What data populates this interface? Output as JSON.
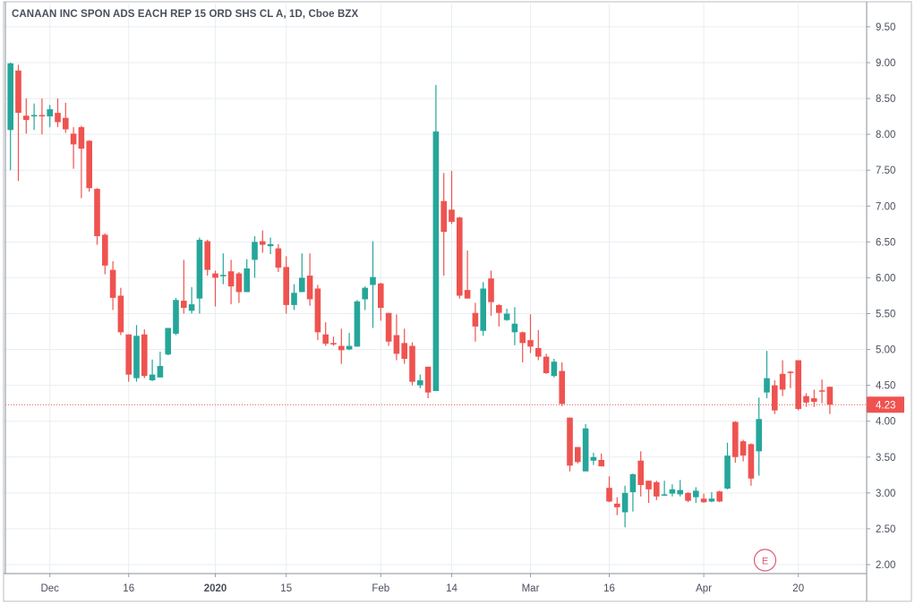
{
  "chart_data": {
    "type": "candlestick",
    "title": "CANAAN INC SPON ADS EACH REP 15 ORD SHS CL A, 1D, Cboe BZX",
    "ylim": [
      1.9,
      9.7
    ],
    "y_ticks": [
      "9.50",
      "9.00",
      "8.50",
      "8.00",
      "7.50",
      "7.00",
      "6.50",
      "6.00",
      "5.50",
      "5.00",
      "4.50",
      "4.00",
      "3.50",
      "3.00",
      "2.50",
      "2.00"
    ],
    "x_ticks": [
      {
        "label": "Dec",
        "candle": 6
      },
      {
        "label": "16",
        "candle": 16
      },
      {
        "label": "2020",
        "candle": 27
      },
      {
        "label": "15",
        "candle": 36
      },
      {
        "label": "Feb",
        "candle": 48
      },
      {
        "label": "14",
        "candle": 57
      },
      {
        "label": "Mar",
        "candle": 67
      },
      {
        "label": "16",
        "candle": 77
      },
      {
        "label": "Apr",
        "candle": 89
      },
      {
        "label": "20",
        "candle": 101
      }
    ],
    "last_price": 4.23,
    "last_price_label": "4.23",
    "earnings_marker": {
      "label": "E",
      "candle": 97
    },
    "colors": {
      "up": "#26a69a",
      "down": "#ef5350",
      "grid": "#e9eef2",
      "text": "#4a4f5c"
    },
    "ohlc_fields": [
      "open",
      "high",
      "low",
      "close"
    ],
    "candles": [
      [
        8.06,
        9.0,
        7.5,
        8.99
      ],
      [
        8.89,
        8.97,
        7.35,
        8.3
      ],
      [
        8.26,
        8.5,
        8.01,
        8.2
      ],
      [
        8.25,
        8.43,
        8.06,
        8.27
      ],
      [
        8.27,
        8.5,
        8.0,
        8.25
      ],
      [
        8.25,
        8.41,
        8.1,
        8.35
      ],
      [
        8.3,
        8.5,
        8.1,
        8.17
      ],
      [
        8.23,
        8.44,
        8.02,
        8.07
      ],
      [
        8.01,
        8.1,
        7.52,
        7.86
      ],
      [
        8.1,
        8.12,
        7.11,
        7.8
      ],
      [
        7.91,
        7.92,
        7.2,
        7.25
      ],
      [
        7.24,
        7.25,
        6.46,
        6.58
      ],
      [
        6.6,
        6.62,
        6.05,
        6.17
      ],
      [
        6.11,
        6.23,
        5.55,
        5.72
      ],
      [
        5.75,
        5.86,
        5.2,
        5.24
      ],
      [
        5.21,
        5.21,
        4.55,
        4.65
      ],
      [
        4.6,
        5.34,
        4.55,
        5.19
      ],
      [
        5.21,
        5.28,
        4.6,
        4.63
      ],
      [
        4.57,
        4.86,
        4.56,
        4.65
      ],
      [
        4.61,
        4.97,
        4.61,
        4.77
      ],
      [
        4.93,
        5.3,
        4.92,
        5.3
      ],
      [
        5.22,
        5.72,
        5.2,
        5.69
      ],
      [
        5.68,
        6.25,
        5.5,
        5.58
      ],
      [
        5.54,
        5.87,
        5.5,
        5.63
      ],
      [
        5.71,
        6.56,
        5.5,
        6.53
      ],
      [
        6.51,
        6.53,
        6.03,
        6.11
      ],
      [
        6.06,
        6.1,
        5.6,
        6.0
      ],
      [
        6.02,
        6.34,
        5.91,
        6.04
      ],
      [
        6.09,
        6.25,
        5.63,
        5.88
      ],
      [
        6.06,
        6.08,
        5.65,
        5.8
      ],
      [
        5.8,
        6.26,
        5.8,
        6.13
      ],
      [
        6.25,
        6.58,
        6.0,
        6.5
      ],
      [
        6.51,
        6.66,
        6.35,
        6.46
      ],
      [
        6.44,
        6.56,
        6.33,
        6.47
      ],
      [
        6.41,
        6.47,
        6.08,
        6.14
      ],
      [
        6.15,
        6.3,
        5.5,
        5.62
      ],
      [
        5.62,
        5.91,
        5.55,
        5.79
      ],
      [
        5.8,
        6.34,
        5.8,
        6.0
      ],
      [
        6.03,
        6.34,
        5.61,
        5.7
      ],
      [
        5.85,
        5.9,
        5.13,
        5.24
      ],
      [
        5.21,
        5.38,
        5.05,
        5.08
      ],
      [
        5.09,
        5.18,
        5.05,
        5.07
      ],
      [
        5.05,
        5.29,
        4.8,
        4.99
      ],
      [
        5.0,
        5.23,
        4.99,
        5.05
      ],
      [
        5.04,
        5.69,
        5.04,
        5.67
      ],
      [
        5.7,
        5.88,
        5.55,
        5.86
      ],
      [
        5.9,
        6.51,
        5.3,
        6.01
      ],
      [
        5.92,
        5.93,
        5.4,
        5.58
      ],
      [
        5.51,
        5.51,
        5.05,
        5.11
      ],
      [
        5.2,
        5.49,
        4.85,
        4.94
      ],
      [
        5.09,
        5.29,
        4.8,
        4.87
      ],
      [
        5.05,
        5.1,
        4.5,
        4.55
      ],
      [
        4.5,
        4.65,
        4.46,
        4.57
      ],
      [
        4.76,
        4.76,
        4.32,
        4.4
      ],
      [
        4.42,
        8.69,
        4.42,
        8.04
      ],
      [
        7.07,
        7.46,
        6.03,
        6.64
      ],
      [
        6.95,
        7.49,
        6.75,
        6.78
      ],
      [
        6.84,
        6.85,
        5.71,
        5.75
      ],
      [
        5.83,
        6.38,
        5.71,
        5.71
      ],
      [
        5.51,
        5.65,
        5.11,
        5.32
      ],
      [
        5.26,
        5.94,
        5.19,
        5.85
      ],
      [
        5.99,
        6.1,
        5.47,
        5.66
      ],
      [
        5.62,
        5.63,
        5.32,
        5.51
      ],
      [
        5.41,
        5.57,
        5.4,
        5.5
      ],
      [
        5.24,
        5.59,
        5.06,
        5.36
      ],
      [
        5.24,
        5.25,
        4.82,
        5.09
      ],
      [
        5.13,
        5.49,
        4.95,
        5.04
      ],
      [
        5.02,
        5.27,
        4.85,
        4.9
      ],
      [
        4.9,
        4.94,
        4.66,
        4.67
      ],
      [
        4.63,
        4.87,
        4.61,
        4.83
      ],
      [
        4.7,
        4.82,
        4.21,
        4.24
      ],
      [
        4.05,
        4.05,
        3.3,
        3.38
      ],
      [
        3.64,
        3.64,
        3.41,
        3.43
      ],
      [
        3.3,
        3.96,
        3.3,
        3.9
      ],
      [
        3.45,
        3.56,
        3.39,
        3.5
      ],
      [
        3.46,
        3.55,
        3.37,
        3.37
      ],
      [
        3.07,
        3.23,
        2.87,
        2.88
      ],
      [
        2.85,
        2.94,
        2.69,
        2.8
      ],
      [
        2.73,
        3.1,
        2.52,
        3.0
      ],
      [
        3.01,
        3.27,
        2.74,
        3.26
      ],
      [
        3.45,
        3.58,
        2.95,
        3.11
      ],
      [
        3.17,
        3.17,
        2.86,
        3.05
      ],
      [
        3.15,
        3.17,
        2.9,
        2.95
      ],
      [
        2.97,
        3.17,
        2.96,
        2.98
      ],
      [
        2.99,
        3.12,
        2.95,
        3.05
      ],
      [
        2.98,
        3.18,
        2.95,
        3.04
      ],
      [
        3.0,
        3.01,
        2.87,
        2.89
      ],
      [
        2.94,
        3.08,
        2.86,
        3.03
      ],
      [
        2.92,
        2.99,
        2.86,
        2.87
      ],
      [
        2.88,
        3.01,
        2.87,
        2.92
      ],
      [
        3.02,
        3.03,
        2.87,
        2.88
      ],
      [
        3.06,
        3.7,
        3.05,
        3.52
      ],
      [
        3.99,
        4.0,
        3.42,
        3.5
      ],
      [
        3.72,
        3.74,
        3.44,
        3.52
      ],
      [
        3.68,
        3.69,
        3.1,
        3.2
      ],
      [
        3.58,
        4.33,
        3.24,
        4.03
      ],
      [
        4.4,
        4.98,
        4.32,
        4.6
      ],
      [
        4.5,
        4.57,
        4.1,
        4.15
      ],
      [
        4.66,
        4.85,
        4.35,
        4.44
      ],
      [
        4.69,
        4.7,
        4.46,
        4.68
      ],
      [
        4.85,
        4.85,
        4.15,
        4.17
      ],
      [
        4.35,
        4.39,
        4.2,
        4.26
      ],
      [
        4.32,
        4.44,
        4.2,
        4.27
      ],
      [
        4.43,
        4.58,
        4.25,
        4.42
      ],
      [
        4.48,
        4.48,
        4.1,
        4.23
      ]
    ]
  }
}
